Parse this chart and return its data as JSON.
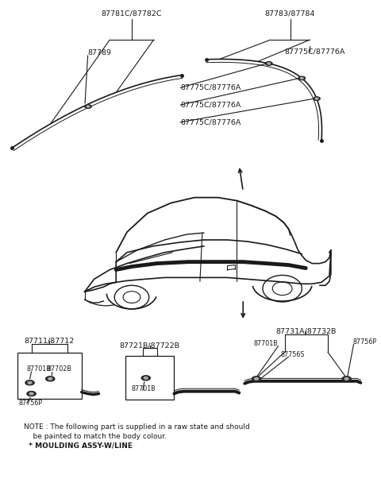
{
  "bg_color": "#ffffff",
  "fig_width": 4.8,
  "fig_height": 6.03,
  "dpi": 100,
  "note_line1": "NOTE : The following part is supplied in a raw state and should",
  "note_line2": "    be painted to match the body colour.",
  "note_line3": "  * MOULDING ASSY-W/LINE"
}
